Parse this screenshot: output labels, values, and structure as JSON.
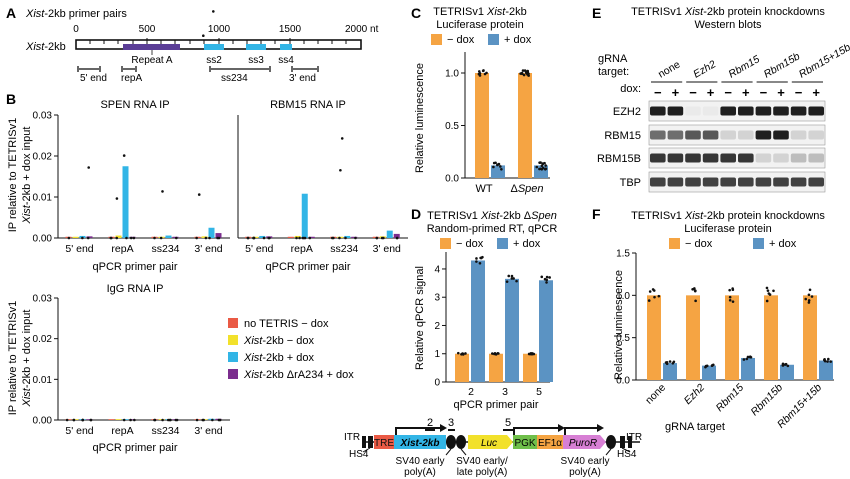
{
  "colors": {
    "minus_dox": "#f5a443",
    "plus_dox": "#5b93c3",
    "cyan": "#32b5e6",
    "purple": "#7b2d8e",
    "red": "#ea5a45",
    "yellow": "#f2e12b",
    "dots": "#111111"
  },
  "panel_labels": {
    "A": "A",
    "B": "B",
    "C": "C",
    "D": "D",
    "E": "E",
    "F": "F"
  },
  "panelA": {
    "title_italic": "Xist",
    "title_rest": "-2kb primer pairs",
    "row_label_italic": "Xist",
    "row_label_rest": "-2kb",
    "scale_ticks": [
      "0",
      "500",
      "1000",
      "1500",
      "2000 nt"
    ],
    "region_label": "Repeat A",
    "repeat_labels": [
      "ss2",
      "ss3",
      "ss4"
    ],
    "primer_labels": [
      "5' end",
      "repA",
      "ss234",
      "3' end"
    ]
  },
  "panelB": {
    "ylabel_line1": "IP relative to TETRISv1",
    "ylabel_line2_italic": "Xist",
    "ylabel_line2_rest": "-2kb + dox input",
    "yticks": [
      "0.00",
      "0.01",
      "0.02",
      "0.03"
    ],
    "categories": [
      "5' end",
      "repA",
      "ss234",
      "3' end"
    ],
    "xlabel": "qPCR primer pair",
    "legend": [
      {
        "plain": "no TETRIS − dox",
        "italic": "",
        "color": "#ea5a45"
      },
      {
        "plain": "-2kb − dox",
        "italic": "Xist",
        "color": "#f2e12b"
      },
      {
        "plain": "-2kb + dox",
        "italic": "Xist",
        "color": "#32b5e6"
      },
      {
        "plain": "-2kb ΔrA234 + dox",
        "italic": "Xist",
        "color": "#7b2d8e"
      }
    ]
  },
  "panelC": {
    "title_line1_plain": "TETRISv1 ",
    "title_line1_italic": "Xist",
    "title_line1_rest": "-2kb",
    "title_line2": "Luciferase protein",
    "legend_minus": "− dox",
    "legend_plus": "+ dox",
    "ylabel": "Relative luminescence",
    "yticks": [
      "0.0",
      "0.5",
      "1.0"
    ],
    "categories_plain": "WT",
    "category2_prefix": "Δ",
    "category2_italic": "Spen"
  },
  "panelD": {
    "title_line1_plain": "TETRISv1 ",
    "title_line1_italic": "Xist",
    "title_line1_rest": "-2kb Δ",
    "title_line1_italic2": "Spen",
    "title_line2": "Random-primed RT, qPCR",
    "legend_minus": "− dox",
    "legend_plus": "+ dox",
    "ylabel": "Relative qPCR signal",
    "yticks": [
      "0",
      "1",
      "2",
      "3",
      "4"
    ],
    "categories": [
      "2",
      "3",
      "5"
    ],
    "xlabel": "qPCR primer pair"
  },
  "panelE": {
    "title_plain": "TETRISv1 ",
    "title_italic": "Xist",
    "title_rest": "-2kb protein knockdowns",
    "subtitle": "Western blots",
    "target_label": "gRNA target:",
    "targets": [
      "none",
      "Ezh2",
      "Rbm15",
      "Rbm15b",
      "Rbm15+15b"
    ],
    "dox_label": "dox:",
    "dox_signs": [
      "−",
      "+",
      "−",
      "+",
      "−",
      "+",
      "−",
      "+",
      "−",
      "+"
    ],
    "rows": [
      "EZH2",
      "RBM15",
      "RBM15B",
      "TBP"
    ]
  },
  "panelF": {
    "title_plain": "TETRISv1 ",
    "title_italic": "Xist",
    "title_rest": "-2kb protein knockdowns",
    "subtitle": "Luciferase protein",
    "legend_minus": "− dox",
    "legend_plus": "+ dox",
    "ylabel": "Relative luminescence",
    "yticks": [
      "0.0",
      "0.5",
      "1.0",
      "1.5"
    ],
    "categories": [
      "none",
      "Ezh2",
      "Rbm15",
      "Rbm15b",
      "Rbm15+15b"
    ],
    "xlabel": "gRNA target"
  },
  "construct": {
    "itr_left": "ITR",
    "itr_right": "ITR",
    "hs4_left": "HS4",
    "hs4_right": "HS4",
    "tre": "TRE",
    "xist": "Xist-2kb",
    "luc": "Luc",
    "pgk": "PGK",
    "ef1a": "EF1α",
    "puror": "PuroR",
    "primer_marks": [
      "2",
      "3",
      "5"
    ],
    "sv40_1": [
      "SV40 early",
      "poly(A)"
    ],
    "sv40_2": [
      "SV40 early/",
      "late poly(A)"
    ],
    "sv40_3": [
      "SV40 early",
      "poly(A)"
    ]
  },
  "chart_data": [
    {
      "type": "bar",
      "title": "SPEN RNA IP",
      "categories": [
        "5' end",
        "repA",
        "ss234",
        "3' end"
      ],
      "ylim": [
        0,
        0.03
      ],
      "series": [
        {
          "name": "no TETRIS − dox",
          "values": [
            0.0003,
            0.0003,
            0.0003,
            0.0003
          ]
        },
        {
          "name": "Xist-2kb − dox",
          "values": [
            0.0003,
            0.0006,
            0.0003,
            0.0004
          ]
        },
        {
          "name": "Xist-2kb + dox",
          "values": [
            0.0005,
            0.0175,
            0.0006,
            0.0025
          ]
        },
        {
          "name": "Xist-2kb ΔrA234 + dox",
          "values": [
            0.0004,
            0.0003,
            0.0003,
            0.0012
          ]
        }
      ]
    },
    {
      "type": "bar",
      "title": "RBM15 RNA IP",
      "categories": [
        "5' end",
        "repA",
        "ss234",
        "3' end"
      ],
      "ylim": [
        0,
        0.03
      ],
      "series": [
        {
          "name": "no TETRIS − dox",
          "values": [
            0.0003,
            0.0003,
            0.0003,
            0.0003
          ]
        },
        {
          "name": "Xist-2kb − dox",
          "values": [
            0.0003,
            0.0005,
            0.0003,
            0.0004
          ]
        },
        {
          "name": "Xist-2kb + dox",
          "values": [
            0.0005,
            0.0108,
            0.0005,
            0.0018
          ]
        },
        {
          "name": "Xist-2kb ΔrA234 + dox",
          "values": [
            0.0004,
            0.0003,
            0.0003,
            0.001
          ]
        }
      ]
    },
    {
      "type": "bar",
      "title": "IgG RNA IP",
      "categories": [
        "5' end",
        "repA",
        "ss234",
        "3' end"
      ],
      "ylim": [
        0,
        0.03
      ],
      "series": [
        {
          "name": "no TETRIS − dox",
          "values": [
            0.0002,
            0.0002,
            0.0002,
            0.0002
          ]
        },
        {
          "name": "Xist-2kb − dox",
          "values": [
            0.0002,
            0.0002,
            0.0002,
            0.0002
          ]
        },
        {
          "name": "Xist-2kb + dox",
          "values": [
            0.0002,
            0.0002,
            0.0002,
            0.0003
          ]
        },
        {
          "name": "Xist-2kb ΔrA234 + dox",
          "values": [
            0.0002,
            0.0002,
            0.0002,
            0.0003
          ]
        }
      ]
    },
    {
      "type": "bar",
      "title": "TETRISv1 Xist-2kb Luciferase protein",
      "categories": [
        "WT",
        "ΔSpen"
      ],
      "ylabel": "Relative luminescence",
      "ylim": [
        0,
        1.2
      ],
      "series": [
        {
          "name": "− dox",
          "values": [
            1.0,
            1.0
          ]
        },
        {
          "name": "+ dox",
          "values": [
            0.12,
            0.12
          ]
        }
      ]
    },
    {
      "type": "bar",
      "title": "TETRISv1 Xist-2kb ΔSpen Random-primed RT, qPCR",
      "categories": [
        "2",
        "3",
        "5"
      ],
      "xlabel": "qPCR primer pair",
      "ylabel": "Relative qPCR signal",
      "ylim": [
        0,
        4.6
      ],
      "series": [
        {
          "name": "− dox",
          "values": [
            1.0,
            1.0,
            1.0
          ]
        },
        {
          "name": "+ dox",
          "values": [
            4.3,
            3.65,
            3.6
          ]
        }
      ]
    },
    {
      "type": "bar",
      "title": "TETRISv1 Xist-2kb protein knockdowns Luciferase protein",
      "categories": [
        "none",
        "Ezh2",
        "Rbm15",
        "Rbm15b",
        "Rbm15+15b"
      ],
      "xlabel": "gRNA target",
      "ylabel": "Relative luminescence",
      "ylim": [
        0,
        1.5
      ],
      "series": [
        {
          "name": "− dox",
          "values": [
            1.0,
            1.0,
            1.0,
            1.0,
            1.0
          ]
        },
        {
          "name": "+ dox",
          "values": [
            0.2,
            0.17,
            0.26,
            0.18,
            0.23
          ]
        }
      ]
    }
  ]
}
